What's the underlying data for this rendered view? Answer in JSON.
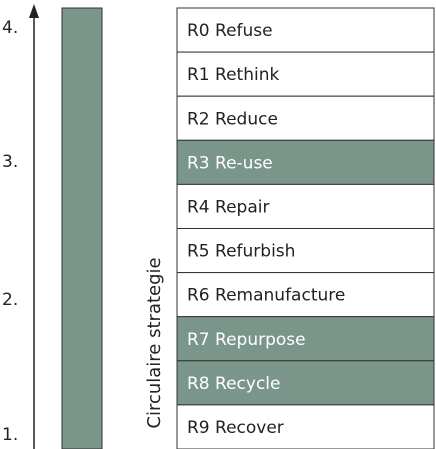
{
  "axis": {
    "labels": [
      "4.",
      "3.",
      "2.",
      "1."
    ]
  },
  "side_label": "Circulaire strategie",
  "bar_color": "#7a968b",
  "rows": [
    {
      "label": "R0 Refuse",
      "color": "#ffffff"
    },
    {
      "label": "R1 Rethink",
      "color": "#ffffff"
    },
    {
      "label": "R2 Reduce",
      "color": "#ffffff"
    },
    {
      "label": "R3 Re-use",
      "color": "#7a968b"
    },
    {
      "label": "R4 Repair",
      "color": "#ffffff"
    },
    {
      "label": "R5 Refurbish",
      "color": "#ffffff"
    },
    {
      "label": "R6 Remanufacture",
      "color": "#ffffff"
    },
    {
      "label": "R7 Repurpose",
      "color": "#7a968b"
    },
    {
      "label": "R8 Recycle",
      "color": "#7a968b"
    },
    {
      "label": "R9 Recover",
      "color": "#ffffff"
    }
  ]
}
